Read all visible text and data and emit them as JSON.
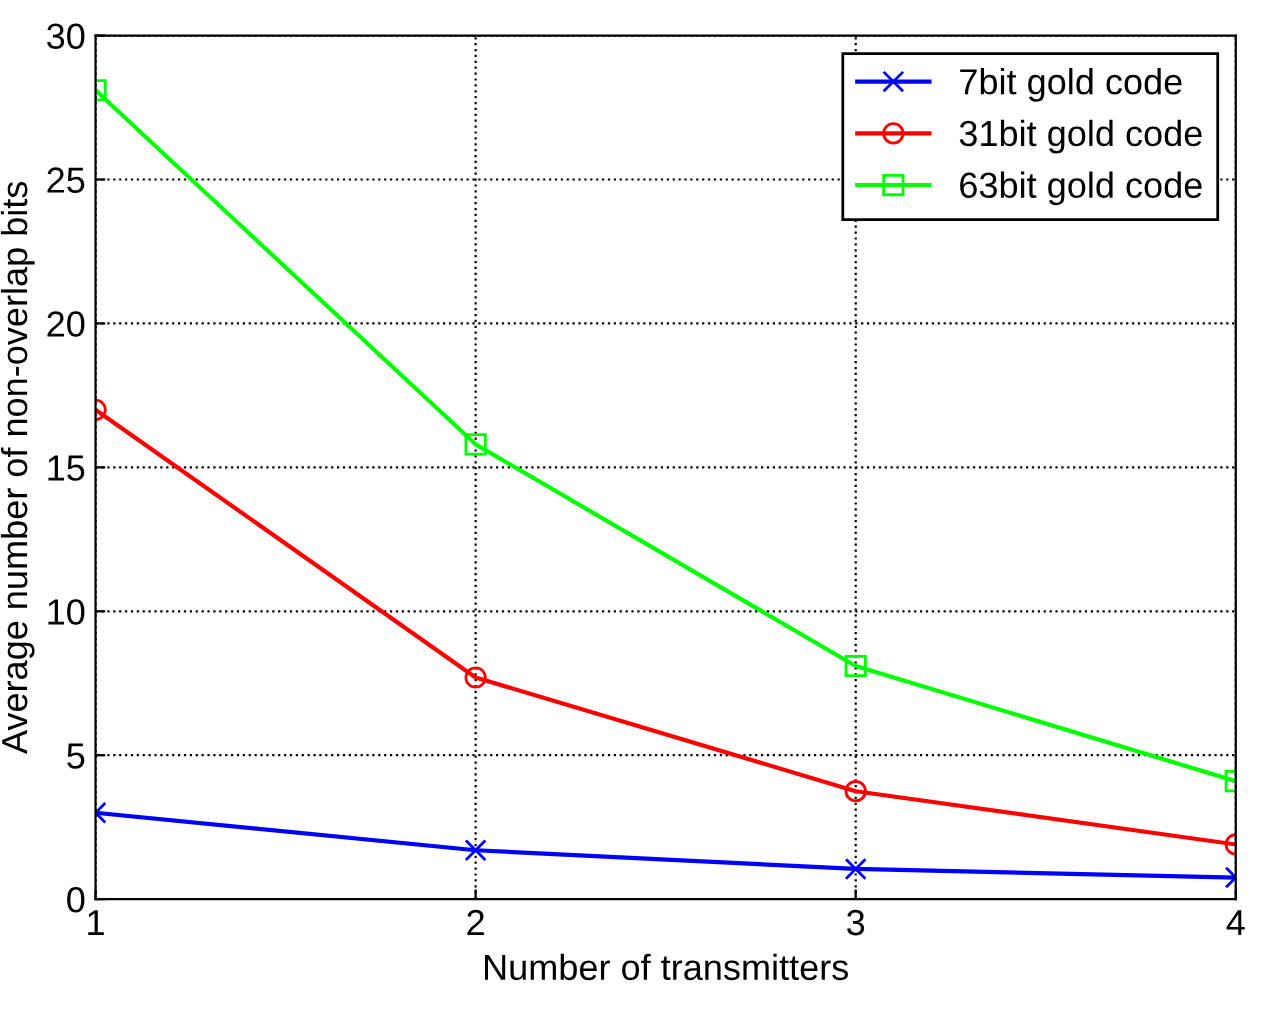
{
  "chart_data": {
    "type": "line",
    "xlabel": "Number of transmitters",
    "ylabel": "Average number of non-overlap bits",
    "x": [
      1,
      2,
      3,
      4
    ],
    "series": [
      {
        "name": "7bit gold code",
        "color": "#0000ff",
        "marker": "cross",
        "values": [
          3.0,
          1.7,
          1.05,
          0.75
        ]
      },
      {
        "name": "31bit gold code",
        "color": "#ff0000",
        "marker": "circle",
        "values": [
          17.0,
          7.7,
          3.75,
          1.9
        ]
      },
      {
        "name": "63bit gold code",
        "color": "#00ff00",
        "marker": "square",
        "values": [
          28.1,
          15.8,
          8.1,
          4.1
        ]
      }
    ],
    "xlim": [
      1,
      4
    ],
    "xticks": [
      1,
      2,
      3,
      4
    ],
    "ylim": [
      0,
      30
    ],
    "yticks": [
      0,
      5,
      10,
      15,
      20,
      25,
      30
    ],
    "grid": true,
    "legend": "top right",
    "line_style": "solid"
  }
}
